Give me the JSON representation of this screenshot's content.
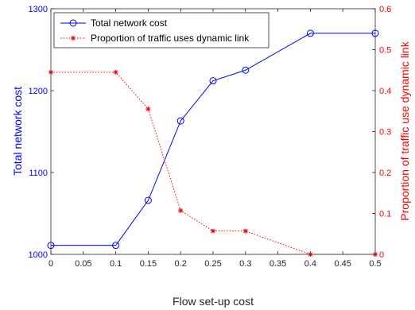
{
  "chart_data": {
    "type": "line",
    "x": [
      0,
      0.1,
      0.15,
      0.2,
      0.25,
      0.3,
      0.4,
      0.5
    ],
    "xlabel": "Flow set-up cost",
    "xlim": [
      0,
      0.5
    ],
    "xticks": [
      "0",
      "0.05",
      "0.1",
      "0.15",
      "0.2",
      "0.25",
      "0.3",
      "0.35",
      "0.4",
      "0.45",
      "0.5"
    ],
    "y_left": {
      "label": "Total network cost",
      "lim": [
        1000,
        1300
      ],
      "ticks": [
        "1000",
        "1100",
        "1200",
        "1300"
      ],
      "color": "#0000ff"
    },
    "y_right": {
      "label": "Proportion of traffic use dynamic link",
      "lim": [
        0,
        0.6
      ],
      "ticks": [
        "0",
        "0.1",
        "0.2",
        "0.3",
        "0.4",
        "0.5",
        "0.6"
      ],
      "color": "#ff0000"
    },
    "series": [
      {
        "name": "Total network cost",
        "axis": "left",
        "color": "#0000ff",
        "marker": "circle",
        "line": "solid",
        "values": [
          1011,
          1011,
          1066,
          1163,
          1212,
          1225,
          1270,
          1270
        ]
      },
      {
        "name": "Proportion of traffic uses dynamic link",
        "axis": "right",
        "color": "#ff0000",
        "marker": "asterisk",
        "line": "dotted",
        "values": [
          0.445,
          0.445,
          0.355,
          0.107,
          0.057,
          0.057,
          0.0,
          0.0
        ]
      }
    ],
    "legend": "top-left",
    "grid": false
  }
}
